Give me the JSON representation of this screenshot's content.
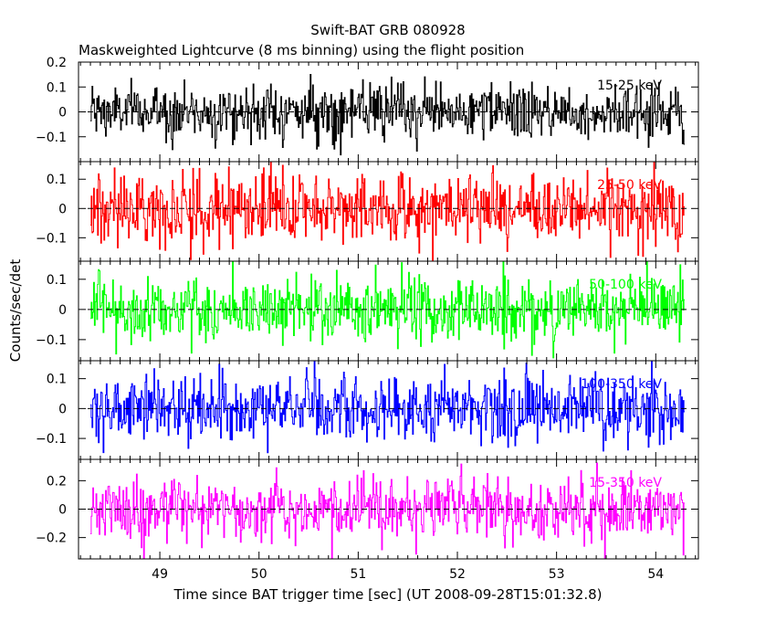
{
  "chart_data": {
    "type": "line",
    "title": "Swift-BAT GRB 080928",
    "subtitle": "Maskweighted Lightcurve (8 ms binning) using the flight position",
    "xlabel": "Time since BAT trigger time [sec] (UT 2008-09-28T15:01:32.8)",
    "ylabel": "Counts/sec/det",
    "xlim": [
      48.18,
      54.43
    ],
    "x_ticks": [
      {
        "value": 49,
        "label": "49"
      },
      {
        "value": 50,
        "label": "50"
      },
      {
        "value": 51,
        "label": "51"
      },
      {
        "value": 52,
        "label": "52"
      },
      {
        "value": 53,
        "label": "53"
      },
      {
        "value": 54,
        "label": "54"
      }
    ],
    "bin_width_sec": 0.008,
    "data_range": [
      48.3,
      54.29
    ],
    "grid": false,
    "legend": "none",
    "panels": [
      {
        "name": "15-25 keV",
        "color": "#000000",
        "ylim": [
          -0.2,
          0.2
        ],
        "y_ticks": [
          {
            "value": 0.2,
            "label": "0.2"
          },
          {
            "value": 0.1,
            "label": "0.1"
          },
          {
            "value": 0,
            "label": "0"
          },
          {
            "value": -0.1,
            "label": "−0.1"
          }
        ],
        "amplitude": 0.055,
        "clip": [
          -0.2,
          0.16
        ]
      },
      {
        "name": "25-50 keV",
        "color": "#ff0000",
        "ylim": [
          -0.18,
          0.16
        ],
        "y_ticks": [
          {
            "value": 0.1,
            "label": "0.1"
          },
          {
            "value": 0,
            "label": "0"
          },
          {
            "value": -0.1,
            "label": "−0.1"
          }
        ],
        "amplitude": 0.06,
        "clip": [
          -0.18,
          0.16
        ]
      },
      {
        "name": "50-100 keV",
        "color": "#00ff00",
        "ylim": [
          -0.17,
          0.16
        ],
        "y_ticks": [
          {
            "value": 0.1,
            "label": "0.1"
          },
          {
            "value": 0,
            "label": "0"
          },
          {
            "value": -0.1,
            "label": "−0.1"
          }
        ],
        "amplitude": 0.055,
        "clip": [
          -0.17,
          0.16
        ]
      },
      {
        "name": "100-350 keV",
        "color": "#0000ff",
        "ylim": [
          -0.17,
          0.16
        ],
        "y_ticks": [
          {
            "value": 0.1,
            "label": "0.1"
          },
          {
            "value": 0,
            "label": "0"
          },
          {
            "value": -0.1,
            "label": "−0.1"
          }
        ],
        "amplitude": 0.055,
        "clip": [
          -0.17,
          0.16
        ]
      },
      {
        "name": "15-350 keV",
        "color": "#ff00ff",
        "ylim": [
          -0.35,
          0.35
        ],
        "y_ticks": [
          {
            "value": 0.2,
            "label": "0.2"
          },
          {
            "value": 0,
            "label": "0"
          },
          {
            "value": -0.2,
            "label": "−0.2"
          }
        ],
        "amplitude": 0.11,
        "clip": [
          -0.35,
          0.35
        ]
      }
    ]
  }
}
